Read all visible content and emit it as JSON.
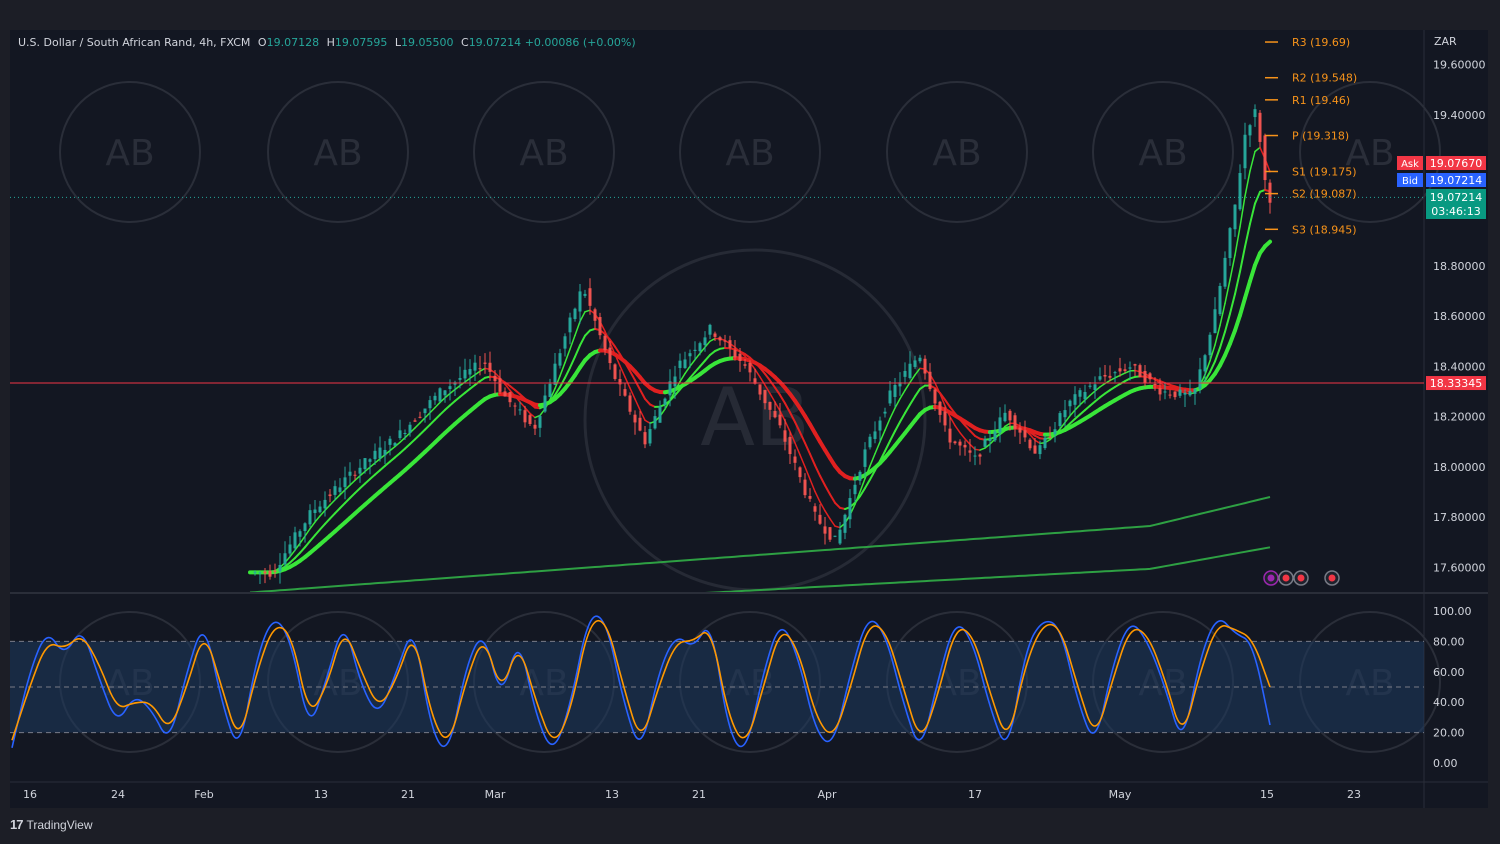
{
  "header": {
    "symbol": "U.S. Dollar / South African Rand, 4h, FXCM",
    "open_label": "O",
    "open": "19.07128",
    "high_label": "H",
    "high": "19.07595",
    "low_label": "L",
    "low": "19.05500",
    "close_label": "C",
    "close": "19.07214",
    "change": "+0.00086 (+0.00%)"
  },
  "currency": "ZAR",
  "brand": "TradingView",
  "colors": {
    "background": "#131722",
    "bull": "#26a69a",
    "bear": "#ef5350",
    "ma_green": "#39e639",
    "ma_red": "#e02020",
    "pivot": "#f7931a",
    "stoch_k": "#2962ff",
    "stoch_d": "#ff9800"
  },
  "chart_data": [
    {
      "type": "line",
      "title": "U.S. Dollar / South African Rand, 4h, FXCM",
      "y_axis_ticks": [
        "19.60000",
        "19.40000",
        "18.80000",
        "18.60000",
        "18.40000",
        "18.20000",
        "18.00000",
        "17.80000",
        "17.60000"
      ],
      "ylim": [
        17.53,
        19.71
      ],
      "x_ticks": [
        "16",
        "24",
        "Feb",
        "13",
        "21",
        "Mar",
        "13",
        "21",
        "Apr",
        "17",
        "May",
        "15",
        "23"
      ],
      "price_path": [
        [
          "Feb 8",
          17.58
        ],
        [
          "Feb 12",
          17.82
        ],
        [
          "Feb 16",
          17.98
        ],
        [
          "Feb 20",
          18.12
        ],
        [
          "Feb 24",
          18.3
        ],
        [
          "Feb 28",
          18.42
        ],
        [
          "Mar 2",
          18.28
        ],
        [
          "Mar 5",
          18.15
        ],
        [
          "Mar 8",
          18.5
        ],
        [
          "Mar 10",
          18.72
        ],
        [
          "Mar 13",
          18.38
        ],
        [
          "Mar 16",
          18.1
        ],
        [
          "Mar 19",
          18.4
        ],
        [
          "Mar 22",
          18.55
        ],
        [
          "Mar 25",
          18.4
        ],
        [
          "Mar 28",
          18.15
        ],
        [
          "Mar 31",
          17.8
        ],
        [
          "Apr 2",
          17.7
        ],
        [
          "Apr 5",
          18.05
        ],
        [
          "Apr 8",
          18.3
        ],
        [
          "Apr 11",
          18.45
        ],
        [
          "Apr 14",
          18.12
        ],
        [
          "Apr 17",
          18.03
        ],
        [
          "Apr 20",
          18.22
        ],
        [
          "Apr 23",
          18.05
        ],
        [
          "Apr 26",
          18.25
        ],
        [
          "Apr 29",
          18.35
        ],
        [
          "May 2",
          18.4
        ],
        [
          "May 5",
          18.3
        ],
        [
          "May 8",
          18.28
        ],
        [
          "May 10",
          18.6
        ],
        [
          "May 12",
          19.05
        ],
        [
          "May 13",
          19.35
        ],
        [
          "May 14",
          19.42
        ],
        [
          "May 15",
          19.07
        ]
      ],
      "horizontal_line": {
        "value": "18.33345",
        "color": "#f23645"
      },
      "current_price": {
        "ask_label": "Ask",
        "ask": "19.07670",
        "bid_label": "Bid",
        "bid": "19.07214",
        "last": "19.07214",
        "countdown": "03:46:13"
      },
      "pivot_levels": [
        {
          "label": "R3 (19.69)",
          "value": 19.69
        },
        {
          "label": "R2 (19.548)",
          "value": 19.548
        },
        {
          "label": "R1 (19.46)",
          "value": 19.46
        },
        {
          "label": "P (19.318)",
          "value": 19.318
        },
        {
          "label": "S1 (19.175)",
          "value": 19.175
        },
        {
          "label": "S2 (19.087)",
          "value": 19.087
        },
        {
          "label": "S3 (18.945)",
          "value": 18.945
        }
      ]
    },
    {
      "type": "line",
      "title": "Stochastic",
      "y_axis_ticks": [
        "100.00",
        "80.00",
        "60.00",
        "40.00",
        "20.00",
        "0.00"
      ],
      "ylim": [
        0,
        100
      ],
      "bands": [
        20,
        50,
        80
      ],
      "series": [
        {
          "values": [
            10,
            60,
            88,
            70,
            90,
            55,
            25,
            45,
            35,
            12,
            60,
            95,
            40,
            5,
            70,
            98,
            80,
            20,
            55,
            95,
            50,
            30,
            60,
            92,
            20,
            5,
            65,
            88,
            40,
            85,
            30,
            5,
            40,
            98,
            95,
            40,
            5,
            60,
            85,
            75,
            95,
            20,
            5,
            60,
            95,
            70,
            20,
            10,
            60,
            98,
            85,
            40,
            5,
            55,
            95,
            80,
            35,
            5,
            75,
            95,
            90,
            40,
            10,
            65,
            95,
            80,
            50,
            10,
            70,
            98,
            85,
            80,
            25
          ]
        },
        {
          "values": [
            15,
            50,
            80,
            75,
            85,
            65,
            35,
            40,
            40,
            20,
            50,
            88,
            50,
            12,
            60,
            92,
            85,
            30,
            50,
            90,
            60,
            35,
            55,
            88,
            30,
            10,
            55,
            85,
            45,
            80,
            40,
            10,
            35,
            92,
            95,
            50,
            12,
            50,
            80,
            80,
            90,
            30,
            10,
            50,
            90,
            75,
            30,
            15,
            50,
            92,
            88,
            50,
            12,
            45,
            90,
            85,
            45,
            12,
            65,
            92,
            90,
            50,
            15,
            55,
            90,
            85,
            55,
            15,
            60,
            92,
            88,
            82,
            50
          ]
        }
      ]
    }
  ]
}
